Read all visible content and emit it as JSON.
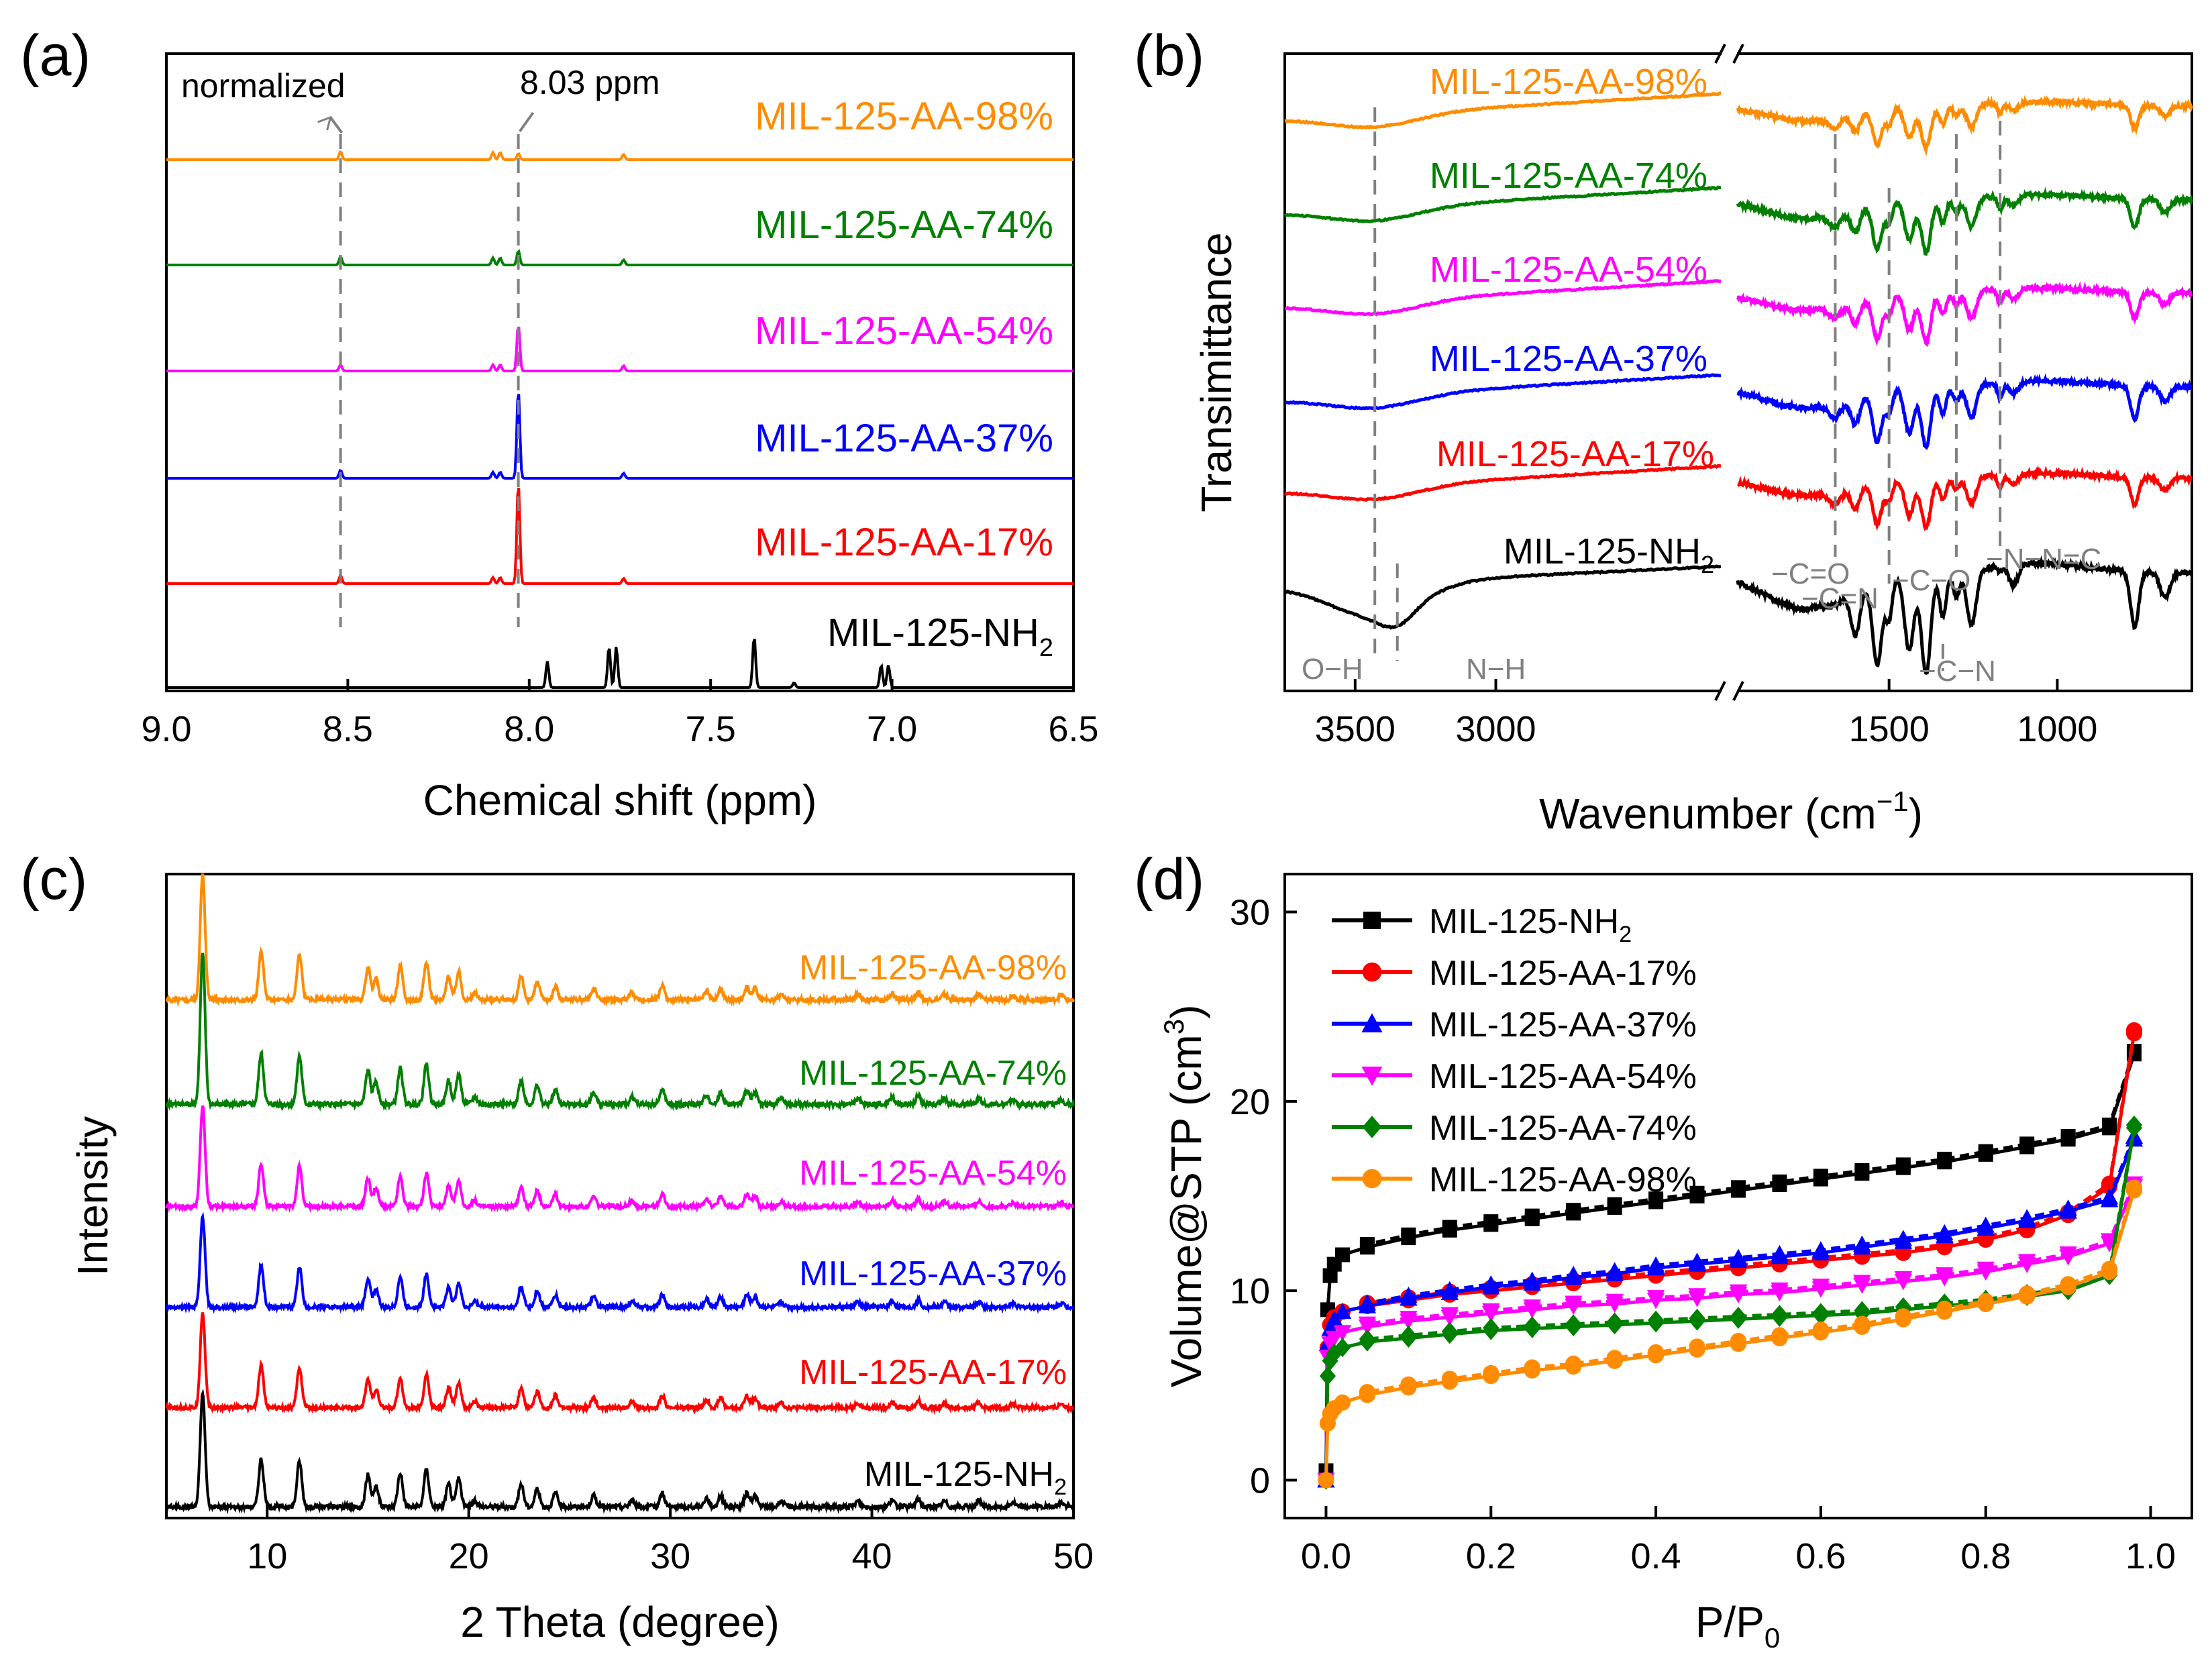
{
  "figure": {
    "panels": [
      {
        "id": "a",
        "label": "(a)"
      },
      {
        "id": "b",
        "label": "(b)"
      },
      {
        "id": "c",
        "label": "(c)"
      },
      {
        "id": "d",
        "label": "(d)"
      }
    ]
  },
  "colors": {
    "MIL-125-NH2": "#000000",
    "MIL-125-AA-17%": "#ff0000",
    "MIL-125-AA-37%": "#0000ff",
    "MIL-125-AA-54%": "#ff00ff",
    "MIL-125-AA-74%": "#008000",
    "MIL-125-AA-98%": "#ff8c00",
    "annotation": "#808080"
  },
  "chart_data": [
    {
      "panel": "a",
      "type": "line",
      "title": "",
      "xlabel": "Chemical shift (ppm)",
      "ylabel": "",
      "xlim": [
        9.0,
        6.5
      ],
      "x_ticks": [
        "9.0",
        "8.5",
        "8.0",
        "7.5",
        "7.0",
        "6.5"
      ],
      "x_tick_values": [
        9.0,
        8.5,
        8.0,
        7.5,
        7.0,
        6.5
      ],
      "annotations": [
        {
          "text": "normalized",
          "x": 8.52
        },
        {
          "text": "8.03 ppm",
          "x": 8.03
        }
      ],
      "series": [
        {
          "name": "MIL-125-NH2",
          "label": "MIL-125-NH",
          "sub": "2",
          "offset": 0,
          "peaks": [
            {
              "x": 7.95,
              "h": 0.28
            },
            {
              "x": 7.78,
              "h": 0.44
            },
            {
              "x": 7.76,
              "h": 0.44
            },
            {
              "x": 7.38,
              "h": 0.55
            },
            {
              "x": 7.03,
              "h": 0.24
            },
            {
              "x": 7.01,
              "h": 0.24
            },
            {
              "x": 7.27,
              "h": 0.05
            }
          ]
        },
        {
          "name": "MIL-125-AA-17%",
          "label": "MIL-125-AA-17%",
          "offset": 1,
          "peaks": [
            {
              "x": 8.52,
              "h": 0.08
            },
            {
              "x": 8.1,
              "h": 0.06
            },
            {
              "x": 8.08,
              "h": 0.06
            },
            {
              "x": 8.03,
              "h": 1.0
            },
            {
              "x": 7.74,
              "h": 0.05
            }
          ]
        },
        {
          "name": "MIL-125-AA-37%",
          "label": "MIL-125-AA-37%",
          "offset": 2,
          "peaks": [
            {
              "x": 8.52,
              "h": 0.08
            },
            {
              "x": 8.1,
              "h": 0.06
            },
            {
              "x": 8.08,
              "h": 0.06
            },
            {
              "x": 8.03,
              "h": 0.88
            },
            {
              "x": 7.74,
              "h": 0.05
            }
          ]
        },
        {
          "name": "MIL-125-AA-54%",
          "label": "MIL-125-AA-54%",
          "offset": 3,
          "peaks": [
            {
              "x": 8.52,
              "h": 0.06
            },
            {
              "x": 8.1,
              "h": 0.06
            },
            {
              "x": 8.08,
              "h": 0.06
            },
            {
              "x": 8.03,
              "h": 0.46
            },
            {
              "x": 7.74,
              "h": 0.05
            }
          ]
        },
        {
          "name": "MIL-125-AA-74%",
          "label": "MIL-125-AA-74%",
          "offset": 4,
          "peaks": [
            {
              "x": 8.52,
              "h": 0.08
            },
            {
              "x": 8.1,
              "h": 0.07
            },
            {
              "x": 8.08,
              "h": 0.07
            },
            {
              "x": 8.03,
              "h": 0.14
            },
            {
              "x": 7.74,
              "h": 0.05
            }
          ]
        },
        {
          "name": "MIL-125-AA-98%",
          "label": "MIL-125-AA-98%",
          "offset": 5,
          "peaks": [
            {
              "x": 8.52,
              "h": 0.08
            },
            {
              "x": 8.1,
              "h": 0.07
            },
            {
              "x": 8.08,
              "h": 0.07
            },
            {
              "x": 8.03,
              "h": 0.06
            },
            {
              "x": 7.74,
              "h": 0.05
            }
          ]
        }
      ]
    },
    {
      "panel": "b",
      "type": "line",
      "xlabel": "Wavenumber (cm",
      "xlabel_sup": "−1",
      "xlabel_close": ")",
      "ylabel": "Transimittance",
      "broken_axis": true,
      "xlim_left": [
        3750,
        2200
      ],
      "xlim_right": [
        1950,
        600
      ],
      "x_ticks": [
        "3500",
        "3000",
        "1500",
        "1000"
      ],
      "x_tick_values": [
        3500,
        3000,
        1500,
        1000
      ],
      "annotations": [
        {
          "text": "O−H",
          "x": 3430
        },
        {
          "text": "N−H",
          "x": 3350
        },
        {
          "text": "−C=O",
          "x": 1660
        },
        {
          "text": "−C=N",
          "x": 1500
        },
        {
          "text": "−C−O",
          "x": 1300
        },
        {
          "text": "−N−N=C",
          "x": 1170
        },
        {
          "text": "−C−N",
          "x": 1340
        }
      ],
      "series": [
        {
          "name": "MIL-125-NH2",
          "label": "MIL-125-NH",
          "sub": "2"
        },
        {
          "name": "MIL-125-AA-17%",
          "label": "MIL-125-AA-17%"
        },
        {
          "name": "MIL-125-AA-37%",
          "label": "MIL-125-AA-37%"
        },
        {
          "name": "MIL-125-AA-54%",
          "label": "MIL-125-AA-54%"
        },
        {
          "name": "MIL-125-AA-74%",
          "label": "MIL-125-AA-74%"
        },
        {
          "name": "MIL-125-AA-98%",
          "label": "MIL-125-AA-98%"
        }
      ],
      "bands": [
        {
          "x": 3430,
          "w": 160,
          "d": 0.55
        },
        {
          "x": 1660,
          "w": 18,
          "d": 0.25
        },
        {
          "x": 1600,
          "w": 14,
          "d": 0.45
        },
        {
          "x": 1535,
          "w": 14,
          "d": 0.85
        },
        {
          "x": 1500,
          "w": 10,
          "d": 0.4
        },
        {
          "x": 1440,
          "w": 14,
          "d": 0.75
        },
        {
          "x": 1390,
          "w": 14,
          "d": 1.0
        },
        {
          "x": 1340,
          "w": 10,
          "d": 0.45
        },
        {
          "x": 1300,
          "w": 10,
          "d": 0.25
        },
        {
          "x": 1255,
          "w": 14,
          "d": 0.55
        },
        {
          "x": 1170,
          "w": 8,
          "d": 0.25
        },
        {
          "x": 1130,
          "w": 14,
          "d": 0.2
        },
        {
          "x": 770,
          "w": 12,
          "d": 0.55
        },
        {
          "x": 680,
          "w": 14,
          "d": 0.25
        }
      ]
    },
    {
      "panel": "c",
      "type": "line",
      "xlabel": "2 Theta (degree)",
      "ylabel": "Intensity",
      "xlim": [
        5,
        50
      ],
      "x_ticks": [
        "10",
        "20",
        "30",
        "40",
        "50"
      ],
      "x_tick_values": [
        10,
        20,
        30,
        40,
        50
      ],
      "peaks_2theta": [
        {
          "x": 6.8,
          "h": 1.0
        },
        {
          "x": 9.7,
          "h": 0.42
        },
        {
          "x": 11.6,
          "h": 0.4
        },
        {
          "x": 15.0,
          "h": 0.28
        },
        {
          "x": 15.4,
          "h": 0.18
        },
        {
          "x": 16.6,
          "h": 0.3
        },
        {
          "x": 17.9,
          "h": 0.33
        },
        {
          "x": 19.0,
          "h": 0.2
        },
        {
          "x": 19.5,
          "h": 0.25
        },
        {
          "x": 20.3,
          "h": 0.06
        },
        {
          "x": 22.6,
          "h": 0.2
        },
        {
          "x": 23.4,
          "h": 0.16
        },
        {
          "x": 24.3,
          "h": 0.12
        },
        {
          "x": 26.2,
          "h": 0.1
        },
        {
          "x": 28.1,
          "h": 0.06
        },
        {
          "x": 29.6,
          "h": 0.12
        },
        {
          "x": 31.8,
          "h": 0.08
        },
        {
          "x": 32.5,
          "h": 0.1
        },
        {
          "x": 33.8,
          "h": 0.12
        },
        {
          "x": 34.2,
          "h": 0.1
        },
        {
          "x": 35.5,
          "h": 0.05
        },
        {
          "x": 39.3,
          "h": 0.05
        },
        {
          "x": 41.0,
          "h": 0.06
        },
        {
          "x": 42.3,
          "h": 0.07
        },
        {
          "x": 43.6,
          "h": 0.05
        },
        {
          "x": 45.3,
          "h": 0.05
        },
        {
          "x": 47.0,
          "h": 0.04
        },
        {
          "x": 49.4,
          "h": 0.04
        }
      ],
      "series": [
        {
          "name": "MIL-125-NH2",
          "label": "MIL-125-NH",
          "sub": "2",
          "main": 1.0
        },
        {
          "name": "MIL-125-AA-17%",
          "label": "MIL-125-AA-17%",
          "main": 0.95
        },
        {
          "name": "MIL-125-AA-37%",
          "label": "MIL-125-AA-37%",
          "main": 0.9
        },
        {
          "name": "MIL-125-AA-54%",
          "label": "MIL-125-AA-54%",
          "main": 1.0
        },
        {
          "name": "MIL-125-AA-74%",
          "label": "MIL-125-AA-74%",
          "main": 1.25
        },
        {
          "name": "MIL-125-AA-98%",
          "label": "MIL-125-AA-98%",
          "main": 1.1
        }
      ]
    },
    {
      "panel": "d",
      "type": "line",
      "xlabel": "P/P",
      "xlabel_sub": "0",
      "ylabel": "Volume@STP (cm",
      "ylabel_sup": "3",
      "ylabel_close": ")",
      "xlim": [
        -0.05,
        1.05
      ],
      "ylim": [
        -2,
        32
      ],
      "x_ticks": [
        "0.0",
        "0.2",
        "0.4",
        "0.6",
        "0.8",
        "1.0"
      ],
      "x_tick_values": [
        0.0,
        0.2,
        0.4,
        0.6,
        0.8,
        1.0
      ],
      "y_ticks": [
        "0",
        "10",
        "20",
        "30"
      ],
      "y_tick_values": [
        0,
        10,
        20,
        30
      ],
      "legend_position": "top-left",
      "series": [
        {
          "name": "MIL-125-NH2",
          "label": "MIL-125-NH",
          "sub": "2",
          "marker": "square",
          "x": [
            0.0,
            0.002,
            0.005,
            0.01,
            0.02,
            0.05,
            0.1,
            0.15,
            0.2,
            0.25,
            0.3,
            0.35,
            0.4,
            0.45,
            0.5,
            0.55,
            0.6,
            0.65,
            0.7,
            0.75,
            0.8,
            0.85,
            0.9,
            0.95,
            0.98
          ],
          "y": [
            0.5,
            9.0,
            10.8,
            11.4,
            11.9,
            12.3,
            12.8,
            13.2,
            13.5,
            13.8,
            14.1,
            14.4,
            14.7,
            15.0,
            15.3,
            15.6,
            15.9,
            16.2,
            16.5,
            16.8,
            17.2,
            17.6,
            18.0,
            18.6,
            22.5
          ]
        },
        {
          "name": "MIL-125-AA-17%",
          "label": "MIL-125-AA-17%",
          "marker": "circle",
          "x": [
            0.0,
            0.002,
            0.005,
            0.01,
            0.02,
            0.05,
            0.1,
            0.15,
            0.2,
            0.25,
            0.3,
            0.35,
            0.4,
            0.45,
            0.5,
            0.55,
            0.6,
            0.65,
            0.7,
            0.75,
            0.8,
            0.85,
            0.9,
            0.95,
            0.98
          ],
          "y": [
            0.0,
            7.0,
            8.2,
            8.6,
            8.9,
            9.2,
            9.5,
            9.8,
            10.0,
            10.2,
            10.4,
            10.6,
            10.8,
            11.0,
            11.2,
            11.4,
            11.6,
            11.8,
            12.0,
            12.3,
            12.7,
            13.2,
            14.0,
            15.5,
            23.6
          ]
        },
        {
          "name": "MIL-125-AA-37%",
          "label": "MIL-125-AA-37%",
          "marker": "triangle-up",
          "x": [
            0.0,
            0.002,
            0.005,
            0.01,
            0.02,
            0.05,
            0.1,
            0.15,
            0.2,
            0.25,
            0.3,
            0.35,
            0.4,
            0.45,
            0.5,
            0.55,
            0.6,
            0.65,
            0.7,
            0.75,
            0.8,
            0.85,
            0.9,
            0.95,
            0.98
          ],
          "y": [
            0.0,
            7.2,
            8.0,
            8.5,
            8.9,
            9.2,
            9.6,
            9.9,
            10.2,
            10.4,
            10.7,
            10.9,
            11.2,
            11.4,
            11.6,
            11.8,
            12.0,
            12.3,
            12.6,
            12.9,
            13.3,
            13.7,
            14.2,
            14.8,
            18.0
          ]
        },
        {
          "name": "MIL-125-AA-54%",
          "label": "MIL-125-AA-54%",
          "marker": "triangle-down",
          "x": [
            0.0,
            0.002,
            0.005,
            0.01,
            0.02,
            0.05,
            0.1,
            0.15,
            0.2,
            0.25,
            0.3,
            0.35,
            0.4,
            0.45,
            0.5,
            0.55,
            0.6,
            0.65,
            0.7,
            0.75,
            0.8,
            0.85,
            0.9,
            0.95,
            0.98
          ],
          "y": [
            0.0,
            6.5,
            7.2,
            7.5,
            7.8,
            8.1,
            8.4,
            8.6,
            8.8,
            9.0,
            9.2,
            9.3,
            9.5,
            9.6,
            9.8,
            9.9,
            10.1,
            10.3,
            10.5,
            10.7,
            11.0,
            11.4,
            11.8,
            12.5,
            15.5
          ]
        },
        {
          "name": "MIL-125-AA-74%",
          "label": "MIL-125-AA-74%",
          "marker": "diamond",
          "x": [
            0.0,
            0.002,
            0.005,
            0.01,
            0.02,
            0.05,
            0.1,
            0.15,
            0.2,
            0.25,
            0.3,
            0.35,
            0.4,
            0.45,
            0.5,
            0.55,
            0.6,
            0.65,
            0.7,
            0.75,
            0.8,
            0.85,
            0.9,
            0.95,
            0.98
          ],
          "y": [
            0.0,
            5.5,
            6.3,
            6.7,
            7.0,
            7.3,
            7.5,
            7.7,
            7.9,
            8.0,
            8.1,
            8.2,
            8.3,
            8.4,
            8.5,
            8.6,
            8.7,
            8.8,
            9.0,
            9.2,
            9.4,
            9.7,
            10.0,
            10.8,
            18.6
          ]
        },
        {
          "name": "MIL-125-AA-98%",
          "label": "MIL-125-AA-98%",
          "marker": "circle",
          "x": [
            0.0,
            0.002,
            0.005,
            0.01,
            0.02,
            0.05,
            0.1,
            0.15,
            0.2,
            0.25,
            0.3,
            0.35,
            0.4,
            0.45,
            0.5,
            0.55,
            0.6,
            0.65,
            0.7,
            0.75,
            0.8,
            0.85,
            0.9,
            0.95,
            0.98
          ],
          "y": [
            0.0,
            3.0,
            3.5,
            3.8,
            4.1,
            4.5,
            4.9,
            5.2,
            5.5,
            5.8,
            6.0,
            6.3,
            6.6,
            6.9,
            7.2,
            7.5,
            7.8,
            8.1,
            8.5,
            8.9,
            9.3,
            9.7,
            10.2,
            11.0,
            15.3
          ]
        }
      ]
    }
  ]
}
